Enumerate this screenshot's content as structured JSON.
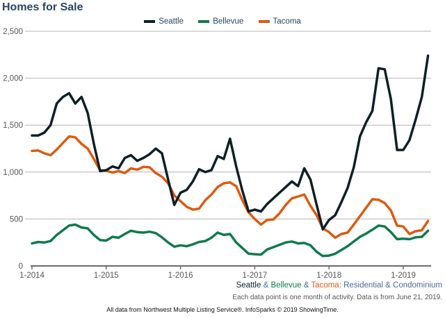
{
  "chart_data": {
    "type": "line",
    "title": "Homes for Sale",
    "xlabel": "",
    "ylabel": "",
    "ylim": [
      0,
      2500
    ],
    "yticks": [
      0,
      500,
      1000,
      1500,
      2000,
      2500
    ],
    "ytick_labels": [
      "0",
      "500",
      "1,000",
      "1,500",
      "2,000",
      "2,500"
    ],
    "xtick_labels": [
      "1-2014",
      "1-2015",
      "1-2016",
      "1-2017",
      "1-2018",
      "1-2019"
    ],
    "xtick_indices": [
      0,
      12,
      24,
      36,
      48,
      60
    ],
    "x_start": "2014-01",
    "x_end": "2019-05",
    "grid": true,
    "legend_position": "top-center",
    "series": [
      {
        "name": "Seattle",
        "color": "#0e1f26",
        "values": [
          1390,
          1390,
          1420,
          1500,
          1730,
          1800,
          1840,
          1730,
          1800,
          1630,
          1300,
          1010,
          1020,
          1060,
          1040,
          1150,
          1180,
          1120,
          1150,
          1190,
          1250,
          1200,
          920,
          650,
          780,
          810,
          900,
          1030,
          1000,
          1020,
          1170,
          1140,
          1355,
          1060,
          800,
          580,
          600,
          580,
          660,
          720,
          780,
          840,
          900,
          850,
          1040,
          920,
          650,
          390,
          490,
          540,
          680,
          830,
          1050,
          1380,
          1530,
          1650,
          2105,
          2095,
          1775,
          1235,
          1235,
          1340,
          1560,
          1800,
          2240
        ]
      },
      {
        "name": "Bellevue",
        "color": "#0f7a4c",
        "values": [
          240,
          255,
          250,
          265,
          330,
          380,
          430,
          440,
          410,
          400,
          330,
          275,
          270,
          310,
          300,
          340,
          375,
          360,
          355,
          365,
          350,
          305,
          250,
          205,
          220,
          210,
          230,
          255,
          265,
          300,
          355,
          330,
          340,
          250,
          190,
          130,
          125,
          120,
          175,
          200,
          225,
          250,
          260,
          240,
          245,
          220,
          150,
          105,
          110,
          130,
          170,
          210,
          260,
          310,
          345,
          385,
          430,
          420,
          360,
          285,
          290,
          285,
          305,
          310,
          375
        ]
      },
      {
        "name": "Tacoma",
        "color": "#dd5a10",
        "values": [
          1225,
          1230,
          1200,
          1180,
          1240,
          1310,
          1380,
          1370,
          1300,
          1250,
          1140,
          1020,
          1015,
          995,
          1010,
          990,
          1040,
          1025,
          1055,
          1050,
          990,
          950,
          880,
          750,
          690,
          630,
          600,
          610,
          700,
          760,
          840,
          880,
          890,
          850,
          700,
          570,
          500,
          440,
          490,
          495,
          560,
          650,
          720,
          740,
          760,
          640,
          540,
          400,
          360,
          300,
          340,
          355,
          440,
          530,
          620,
          710,
          705,
          670,
          590,
          430,
          420,
          340,
          370,
          380,
          480
        ]
      }
    ]
  },
  "header": {
    "title": "Homes for Sale"
  },
  "legend": [
    {
      "label": "Seattle",
      "color": "#0e1f26"
    },
    {
      "label": "Bellevue",
      "color": "#0f7a4c"
    },
    {
      "label": "Tacoma",
      "color": "#dd5a10"
    }
  ],
  "footer": {
    "subtitle_parts": [
      {
        "text": "Seattle",
        "color": "#0e1f26"
      },
      {
        "text": " & ",
        "color": "#4a6d96"
      },
      {
        "text": "Bellevue",
        "color": "#0f7a4c"
      },
      {
        "text": " & ",
        "color": "#4a6d96"
      },
      {
        "text": "Tacoma",
        "color": "#dd5a10"
      },
      {
        "text": ": Residential & Condominium",
        "color": "#4a6d96"
      }
    ],
    "note": "Each data point is one month of activity. Data is from June 21, 2019.",
    "source": "All data from Northwest Multiple Listing Service®. InfoSparks © 2019 ShowingTime."
  }
}
